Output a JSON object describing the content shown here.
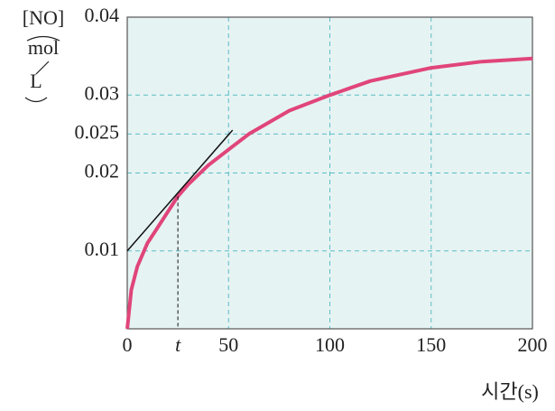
{
  "chart_data": {
    "type": "line",
    "y_label": "[NO]",
    "y_unit_num": "mol",
    "y_unit_den": "L",
    "x_label": "시간(s)",
    "xlim": [
      0,
      200
    ],
    "xticks": [
      0,
      {
        "value": 25,
        "label": "t"
      },
      50,
      100,
      150,
      200
    ],
    "ylim": [
      0,
      0.04
    ],
    "yticks": [
      0.01,
      0.02,
      0.025,
      0.03,
      0.04
    ],
    "grid": true,
    "series": [
      {
        "color": "#e0457a",
        "x": [
          0,
          2,
          5,
          10,
          15,
          20,
          25,
          30,
          40,
          50,
          60,
          80,
          100,
          120,
          150,
          175,
          200
        ],
        "values": [
          0,
          0.005,
          0.008,
          0.011,
          0.013,
          0.015,
          0.017,
          0.0185,
          0.021,
          0.023,
          0.025,
          0.028,
          0.03,
          0.0318,
          0.0335,
          0.0343,
          0.0347
        ]
      }
    ],
    "tangent": {
      "color": "#111",
      "x": [
        0,
        52
      ],
      "values": [
        0.01,
        0.0255
      ]
    }
  }
}
